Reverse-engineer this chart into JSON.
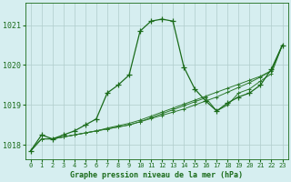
{
  "x": [
    0,
    1,
    2,
    3,
    4,
    5,
    6,
    7,
    8,
    9,
    10,
    11,
    12,
    13,
    14,
    15,
    16,
    17,
    18,
    19,
    20,
    21,
    22,
    23
  ],
  "line1": [
    1017.85,
    1018.25,
    1018.15,
    1018.25,
    1018.35,
    1018.5,
    1018.65,
    1019.3,
    1019.5,
    1019.75,
    1020.85,
    1021.1,
    1021.15,
    1021.1,
    1019.95,
    1019.4,
    1019.1,
    1018.85,
    1019.05,
    1019.2,
    1019.3,
    1019.5,
    1019.9,
    1020.5
  ],
  "line2": [
    1017.85,
    1018.15,
    1018.15,
    1018.2,
    1018.25,
    1018.3,
    1018.35,
    1018.4,
    1018.45,
    1018.5,
    1018.58,
    1018.66,
    1018.74,
    1018.82,
    1018.9,
    1019.0,
    1019.1,
    1019.2,
    1019.32,
    1019.44,
    1019.56,
    1019.7,
    1019.85,
    1020.5
  ],
  "line3": [
    1017.85,
    1018.15,
    1018.15,
    1018.2,
    1018.25,
    1018.3,
    1018.35,
    1018.42,
    1018.48,
    1018.54,
    1018.62,
    1018.72,
    1018.82,
    1018.92,
    1019.02,
    1019.12,
    1019.22,
    1019.32,
    1019.42,
    1019.52,
    1019.62,
    1019.72,
    1019.86,
    1020.5
  ],
  "line4": [
    1017.85,
    1018.15,
    1018.15,
    1018.2,
    1018.25,
    1018.3,
    1018.35,
    1018.4,
    1018.45,
    1018.5,
    1018.58,
    1018.68,
    1018.78,
    1018.88,
    1018.98,
    1019.08,
    1019.18,
    1018.85,
    1019.0,
    1019.3,
    1019.4,
    1019.6,
    1019.78,
    1020.5
  ],
  "bg_color": "#d6eef0",
  "grid_color": "#b0cccc",
  "line_color": "#1a6b1a",
  "line_color2": "#2d7a2d",
  "xlabel": "Graphe pression niveau de la mer (hPa)",
  "ylim": [
    1017.65,
    1021.55
  ],
  "yticks": [
    1018,
    1019,
    1020,
    1021
  ],
  "xticks": [
    0,
    1,
    2,
    3,
    4,
    5,
    6,
    7,
    8,
    9,
    10,
    11,
    12,
    13,
    14,
    15,
    16,
    17,
    18,
    19,
    20,
    21,
    22,
    23
  ]
}
